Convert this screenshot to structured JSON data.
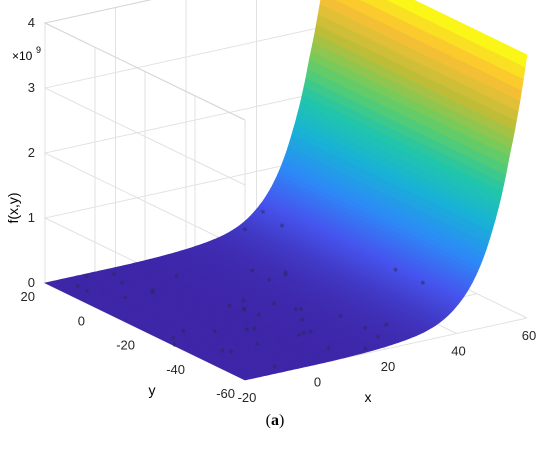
{
  "chart_data": {
    "type": "surface",
    "title": "",
    "xlabel": "x",
    "ylabel": "y",
    "zlabel": "f(x,y)",
    "z_exponent_label": "×10",
    "z_exponent": "9",
    "xlim": [
      -20,
      60
    ],
    "ylim": [
      -60,
      20
    ],
    "zlim": [
      0,
      4
    ],
    "x_ticks": [
      -20,
      0,
      20,
      40,
      60
    ],
    "y_ticks": [
      20,
      0,
      -20,
      -40,
      -60
    ],
    "z_ticks": [
      0,
      1,
      2,
      3,
      4
    ],
    "grid": true,
    "colormap": "parula",
    "surface_profile": {
      "x": [
        -20,
        0,
        10,
        20,
        30,
        35,
        40,
        45,
        50,
        55,
        60
      ],
      "z": [
        0,
        0,
        0.01,
        0.04,
        0.12,
        0.22,
        0.42,
        0.78,
        1.45,
        2.55,
        4.05
      ]
    }
  },
  "caption": {
    "open": "(",
    "letter": "a",
    "close": ")"
  }
}
